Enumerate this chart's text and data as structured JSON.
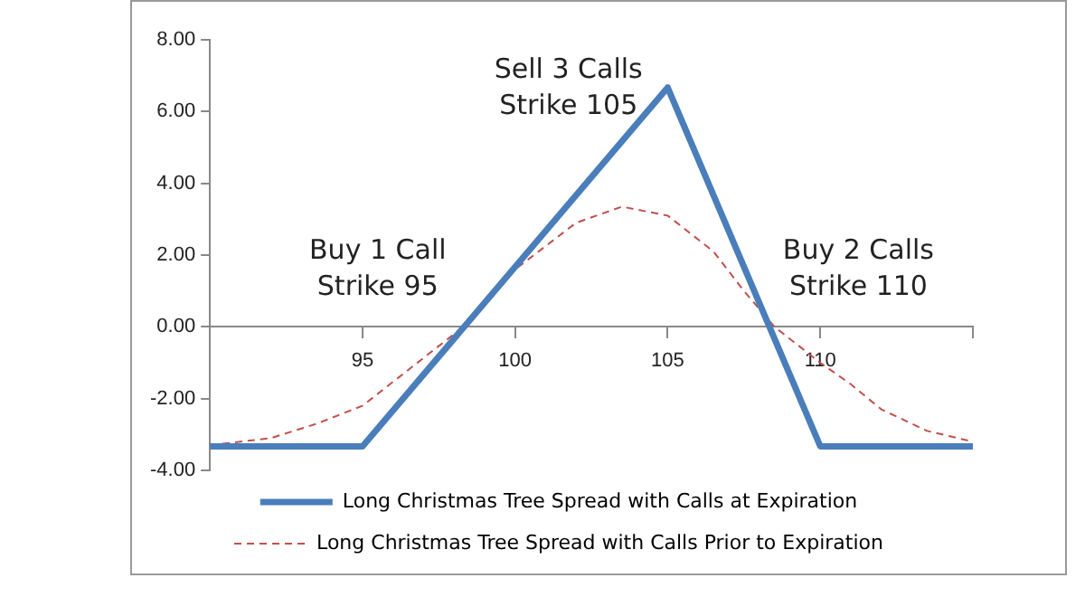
{
  "chart_data": {
    "type": "line",
    "annotations": [
      "Buy 1 Call\nStrike 95",
      "Sell 3 Calls\nStrike 105",
      "Buy 2 Calls\nStrike 110"
    ],
    "series": [
      {
        "name": "Long Christmas Tree Spread with Calls at Expiration",
        "color": "#4a7ebb",
        "line_style": "solid",
        "x": [
          90,
          95,
          105,
          110,
          115
        ],
        "values": [
          -3.33,
          -3.33,
          6.67,
          -3.33,
          -3.33
        ]
      },
      {
        "name": "Long Christmas Tree Spread with Calls Prior to Expiration",
        "color": "#c0504d",
        "line_style": "dashed",
        "x": [
          90,
          92,
          93.5,
          95,
          96.5,
          98.3,
          100,
          102,
          103.5,
          105,
          106.5,
          107.5,
          108.5,
          110,
          111,
          112,
          113.5,
          115
        ],
        "values": [
          -3.3,
          -3.1,
          -2.7,
          -2.2,
          -1.2,
          0,
          1.6,
          2.9,
          3.35,
          3.1,
          2.1,
          1.0,
          0,
          -1.0,
          -1.6,
          -2.3,
          -2.9,
          -3.2
        ]
      }
    ],
    "xlim": [
      90,
      115
    ],
    "xticks": [
      {
        "value": 90,
        "label": null
      },
      95,
      100,
      105,
      110,
      {
        "value": 115,
        "label": null
      }
    ],
    "ylim": [
      -4,
      8
    ],
    "yticks": [
      {
        "value": -4,
        "label": "-4.00"
      },
      {
        "value": -2,
        "label": "-2.00"
      },
      {
        "value": 0,
        "label": "0.00"
      },
      {
        "value": 2,
        "label": "2.00"
      },
      {
        "value": 4,
        "label": "4.00"
      },
      {
        "value": 6,
        "label": "6.00"
      },
      {
        "value": 8,
        "label": "8.00"
      }
    ],
    "grid": false,
    "legend": "bottom",
    "marker": "none"
  }
}
